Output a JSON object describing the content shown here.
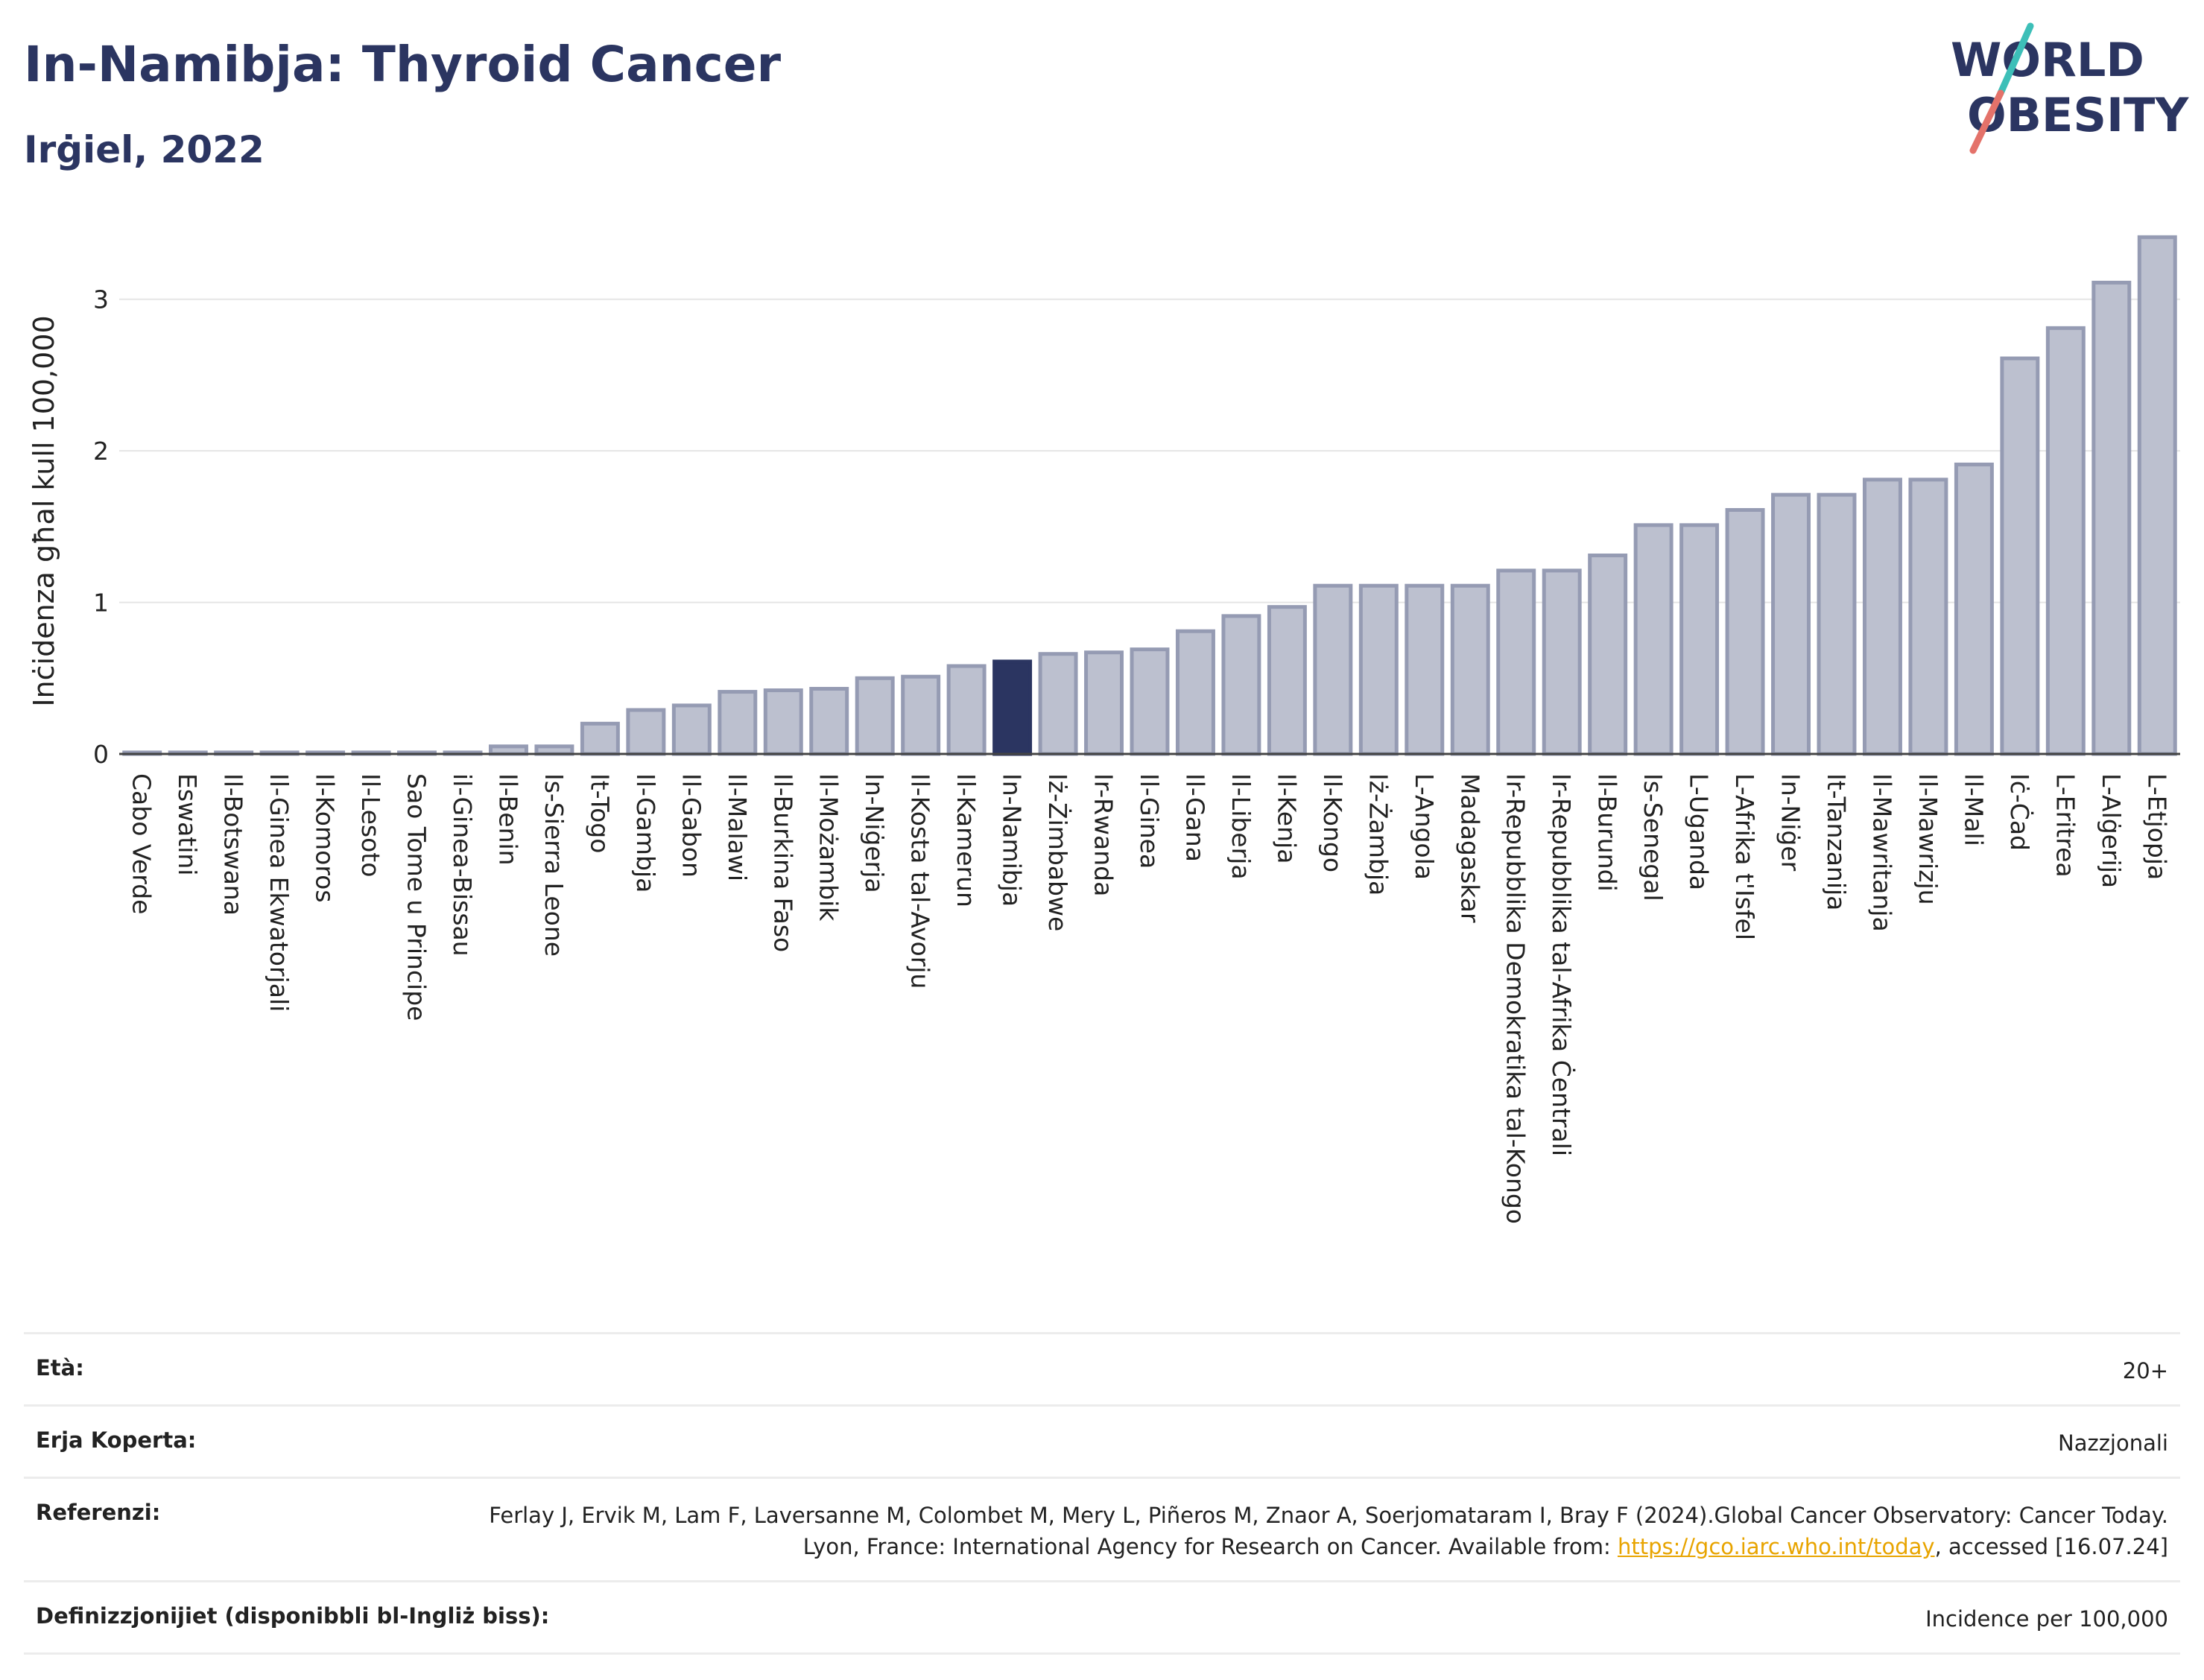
{
  "header": {
    "title": "In-Namibja: Thyroid Cancer",
    "subtitle": "Irġiel, 2022",
    "logo_line1": "WORLD",
    "logo_line2": "OBESITY"
  },
  "colors": {
    "bar": "#bcc0cf",
    "bar_stroke": "#959bb3",
    "highlight": "#2b3561",
    "grid": "#e5e5e5",
    "logo_text": "#2b3561",
    "logo_teal": "#3dbfb8",
    "logo_red": "#e4726a"
  },
  "chart_data": {
    "type": "bar",
    "title": "In-Namibja: Thyroid Cancer",
    "subtitle": "Irġiel, 2022",
    "ylabel": "Inċidenza għal kull 100,000",
    "xlabel": "",
    "ylim": [
      0,
      3.5
    ],
    "yticks": [
      0,
      1,
      2,
      3
    ],
    "grid": true,
    "highlight_category": "In-Namibja",
    "categories": [
      "Cabo Verde",
      "Eswatini",
      "Il-Botswana",
      "Il-Ginea Ekwatorjali",
      "Il-Komoros",
      "Il-Lesoto",
      "Sao Tome u Principe",
      "il-Ginea-Bissau",
      "Il-Benin",
      "Is-Sierra Leone",
      "It-Togo",
      "Il-Gambja",
      "Il-Gabon",
      "Il-Malawi",
      "Il-Burkina Faso",
      "Il-Możambik",
      "In-Niġerja",
      "Il-Kosta tal-Avorju",
      "Il-Kamerun",
      "In-Namibja",
      "Iż-Żimbabwe",
      "Ir-Rwanda",
      "Il-Ginea",
      "Il-Gana",
      "Il-Liberja",
      "Il-Kenja",
      "Il-Kongo",
      "Iż-Żambja",
      "L-Angola",
      "Madagaskar",
      "Ir-Repubblika Demokratika tal-Kongo",
      "Ir-Repubblika tal-Afrika Ċentrali",
      "Il-Burundi",
      "Is-Senegal",
      "L-Uganda",
      "L-Afrika t'Isfel",
      "In-Niġer",
      "It-Tanzanija",
      "Il-Mawritanja",
      "Il-Mawrizju",
      "Il-Mali",
      "Iċ-Ċad",
      "L-Eritrea",
      "L-Alġerija",
      "L-Etjopja"
    ],
    "values": [
      0.01,
      0.01,
      0.01,
      0.01,
      0.01,
      0.01,
      0.01,
      0.01,
      0.05,
      0.05,
      0.2,
      0.29,
      0.32,
      0.41,
      0.42,
      0.43,
      0.5,
      0.51,
      0.58,
      0.61,
      0.66,
      0.67,
      0.69,
      0.81,
      0.91,
      0.97,
      1.11,
      1.11,
      1.11,
      1.11,
      1.21,
      1.21,
      1.31,
      1.51,
      1.51,
      1.61,
      1.71,
      1.71,
      1.81,
      1.81,
      1.91,
      2.61,
      2.81,
      3.11,
      3.41
    ]
  },
  "info": {
    "age_label": "Età:",
    "age_value": "20+",
    "area_label": "Erja Koperta:",
    "area_value": "Nazzjonali",
    "ref_label": "Referenzi:",
    "ref_text_1": "Ferlay J, Ervik M, Lam F, Laversanne M, Colombet M, Mery L, Piñeros M, Znaor A, Soerjomataram I, Bray F (2024).Global Cancer Observatory: Cancer Today. Lyon, France: International Agency for Research on Cancer. Available from: ",
    "ref_link": "https://gco.iarc.who.int/today",
    "ref_text_2": ", accessed [16.07.24]",
    "def_label": "Definizzjonijiet (disponibbli bl-Ingliż biss):",
    "def_value": "Incidence per 100,000"
  }
}
